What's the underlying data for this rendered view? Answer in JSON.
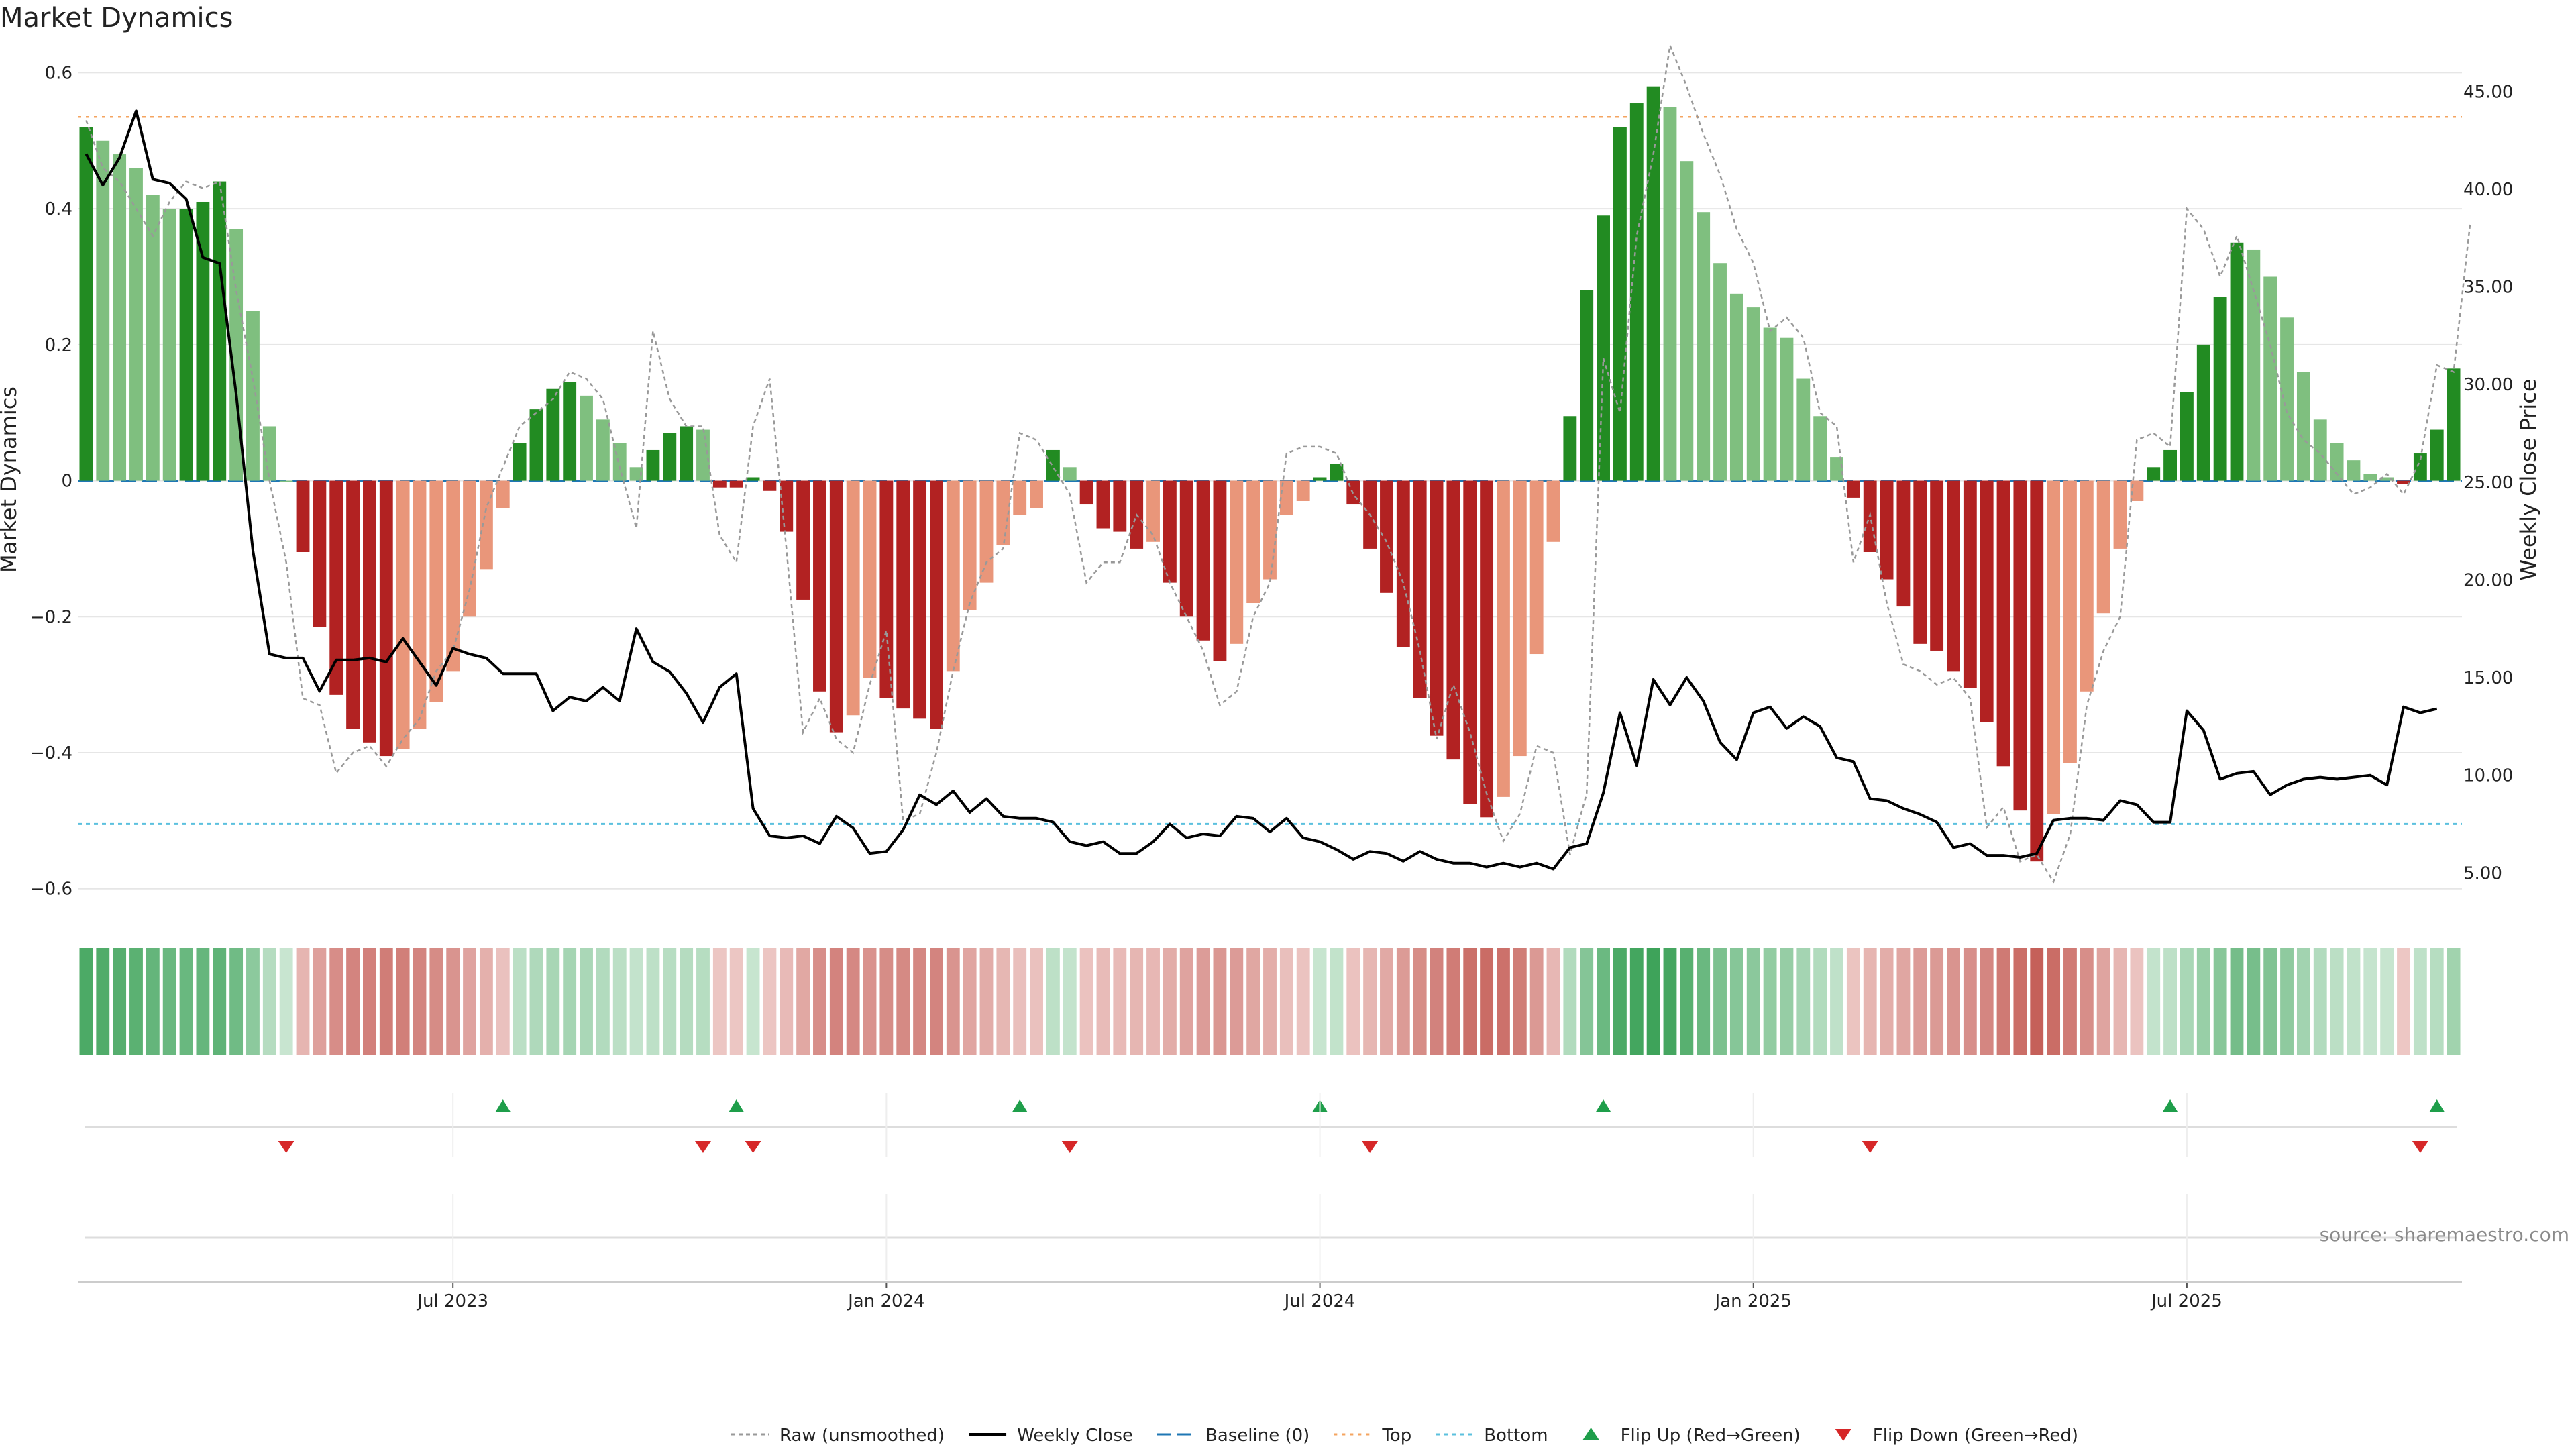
{
  "chart_data": {
    "type": "bar",
    "title": "Market Dynamics",
    "ylabel": "Market Dynamics",
    "y2label": "Weekly Close Price",
    "source": "source: sharemaestro.com",
    "ylim": [
      -0.62,
      0.63
    ],
    "y_ticks": [
      "0.6",
      "0.4",
      "0.2",
      "0",
      "−0.2",
      "−0.4",
      "−0.6"
    ],
    "y_tick_values": [
      0.6,
      0.4,
      0.2,
      0,
      -0.2,
      -0.4,
      -0.6
    ],
    "y2lim": [
      3.5,
      47.0
    ],
    "y2_ticks": [
      "45.00",
      "40.00",
      "35.00",
      "30.00",
      "25.00",
      "20.00",
      "15.00",
      "10.00",
      "5.00"
    ],
    "y2_tick_values": [
      45,
      40,
      35,
      30,
      25,
      20,
      15,
      10,
      5
    ],
    "x_ticks": [
      "Jul 2023",
      "Jan 2024",
      "Jul 2024",
      "Jan 2025",
      "Jul 2025"
    ],
    "x_tick_weeks": [
      22,
      48,
      74,
      100,
      126
    ],
    "top_level": 0.535,
    "bottom_level": -0.505,
    "baseline": 0,
    "colors": {
      "green_strong": "#228B22",
      "green_light": "#7fbf7f",
      "red_strong": "#b22222",
      "red_light": "#e9967a",
      "close": "#000000",
      "raw": "#999999",
      "baseline": "#1f77b4",
      "top": "#f4a460",
      "bottom": "#5bc0de",
      "flip_up": "#1e9e4a",
      "flip_down": "#d62728"
    },
    "series": [
      {
        "name": "Market Dynamics",
        "values": [
          0.52,
          0.5,
          0.48,
          0.46,
          0.42,
          0.4,
          0.4,
          0.41,
          0.44,
          0.37,
          0.25,
          0.08,
          0,
          -0.105,
          -0.215,
          -0.315,
          -0.365,
          -0.385,
          -0.405,
          -0.395,
          -0.365,
          -0.325,
          -0.28,
          -0.2,
          -0.13,
          -0.04,
          0.055,
          0.105,
          0.135,
          0.145,
          0.125,
          0.09,
          0.055,
          0.02,
          0.045,
          0.07,
          0.08,
          0.075,
          -0.01,
          -0.01,
          0.005,
          -0.015,
          -0.075,
          -0.175,
          -0.31,
          -0.37,
          -0.345,
          -0.29,
          -0.32,
          -0.335,
          -0.35,
          -0.365,
          -0.28,
          -0.19,
          -0.15,
          -0.095,
          -0.05,
          -0.04,
          0.045,
          0.02,
          -0.035,
          -0.07,
          -0.075,
          -0.1,
          -0.09,
          -0.15,
          -0.2,
          -0.235,
          -0.265,
          -0.24,
          -0.18,
          -0.145,
          -0.05,
          -0.03,
          0.005,
          0.025,
          -0.035,
          -0.1,
          -0.165,
          -0.245,
          -0.32,
          -0.375,
          -0.41,
          -0.475,
          -0.495,
          -0.465,
          -0.405,
          -0.255,
          -0.09,
          0.095,
          0.28,
          0.39,
          0.52,
          0.555,
          0.58,
          0.55,
          0.47,
          0.395,
          0.32,
          0.275,
          0.255,
          0.225,
          0.21,
          0.15,
          0.095,
          0.035,
          -0.025,
          -0.105,
          -0.145,
          -0.185,
          -0.24,
          -0.25,
          -0.28,
          -0.305,
          -0.355,
          -0.42,
          -0.485,
          -0.56,
          -0.49,
          -0.415,
          -0.31,
          -0.195,
          -0.1,
          -0.03,
          0.02,
          0.045,
          0.13,
          0.2,
          0.27,
          0.35,
          0.34,
          0.3,
          0.24,
          0.16,
          0.09,
          0.055,
          0.03,
          0.01,
          0.005,
          -0.005,
          0.04,
          0.075,
          0.165
        ]
      },
      {
        "name": "Raw (unsmoothed)",
        "values": [
          0.53,
          0.46,
          0.44,
          0.4,
          0.36,
          0.41,
          0.44,
          0.43,
          0.44,
          0.28,
          0.15,
          0,
          -0.12,
          -0.32,
          -0.33,
          -0.43,
          -0.4,
          -0.39,
          -0.42,
          -0.38,
          -0.35,
          -0.28,
          -0.25,
          -0.16,
          -0.04,
          0.02,
          0.08,
          0.1,
          0.12,
          0.16,
          0.15,
          0.12,
          0.02,
          -0.07,
          0.22,
          0.12,
          0.08,
          0.08,
          -0.08,
          -0.12,
          0.08,
          0.15,
          -0.1,
          -0.37,
          -0.32,
          -0.38,
          -0.4,
          -0.3,
          -0.22,
          -0.5,
          -0.49,
          -0.4,
          -0.28,
          -0.18,
          -0.12,
          -0.1,
          0.07,
          0.06,
          0.02,
          -0.02,
          -0.15,
          -0.12,
          -0.12,
          -0.05,
          -0.08,
          -0.15,
          -0.2,
          -0.25,
          -0.33,
          -0.31,
          -0.2,
          -0.15,
          0.04,
          0.05,
          0.05,
          0.04,
          -0.02,
          -0.05,
          -0.09,
          -0.15,
          -0.25,
          -0.38,
          -0.3,
          -0.37,
          -0.46,
          -0.53,
          -0.49,
          -0.39,
          -0.4,
          -0.55,
          -0.46,
          0.18,
          0.1,
          0.36,
          0.48,
          0.64,
          0.58,
          0.51,
          0.45,
          0.37,
          0.32,
          0.22,
          0.24,
          0.21,
          0.1,
          0.08,
          -0.12,
          -0.05,
          -0.18,
          -0.27,
          -0.28,
          -0.3,
          -0.29,
          -0.32,
          -0.51,
          -0.48,
          -0.56,
          -0.55,
          -0.59,
          -0.52,
          -0.33,
          -0.25,
          -0.2,
          0.06,
          0.07,
          0.05,
          0.4,
          0.37,
          0.3,
          0.36,
          0.28,
          0.2,
          0.1,
          0.06,
          0.04,
          0.01,
          -0.02,
          -0.01,
          0.01,
          -0.02,
          0.03,
          0.17,
          0.16,
          0.38
        ]
      },
      {
        "name": "Weekly Close",
        "values": [
          41.8,
          40.2,
          41.6,
          44.0,
          40.5,
          40.3,
          39.5,
          36.5,
          36.2,
          29.5,
          21.5,
          16.2,
          16.0,
          16.0,
          14.3,
          15.9,
          15.9,
          16.0,
          15.8,
          17.0,
          15.8,
          14.6,
          16.5,
          16.2,
          16.0,
          15.2,
          15.2,
          15.2,
          13.3,
          14.0,
          13.8,
          14.5,
          13.8,
          17.5,
          15.8,
          15.3,
          14.2,
          12.7,
          14.5,
          15.2,
          8.3,
          6.9,
          6.8,
          6.9,
          6.5,
          7.9,
          7.3,
          6.0,
          6.1,
          7.2,
          9.0,
          8.5,
          9.2,
          8.1,
          8.8,
          7.9,
          7.8,
          7.8,
          7.6,
          6.6,
          6.4,
          6.6,
          6.0,
          6.0,
          6.6,
          7.5,
          6.8,
          7.0,
          6.9,
          7.9,
          7.8,
          7.1,
          7.8,
          6.8,
          6.6,
          6.2,
          5.7,
          6.1,
          6.0,
          5.6,
          6.1,
          5.7,
          5.5,
          5.5,
          5.3,
          5.5,
          5.3,
          5.5,
          5.2,
          6.3,
          6.5,
          9.1,
          13.2,
          10.5,
          14.9,
          13.6,
          15.0,
          13.8,
          11.7,
          10.8,
          13.2,
          13.5,
          12.4,
          13.0,
          12.5,
          10.9,
          10.7,
          8.8,
          8.7,
          8.3,
          8.0,
          7.6,
          6.3,
          6.5,
          5.9,
          5.9,
          5.8,
          6.0,
          7.7,
          7.8,
          7.8,
          7.7,
          8.7,
          8.5,
          7.6,
          7.6,
          13.3,
          12.3,
          9.8,
          10.1,
          10.2,
          9.0,
          9.5,
          9.8,
          9.9,
          9.8,
          9.9,
          10.0,
          9.5,
          13.5,
          13.2,
          13.4
        ]
      }
    ],
    "flip_up_weeks": [
      25,
      39,
      56,
      74,
      91,
      125,
      141
    ],
    "flip_down_weeks": [
      12,
      37,
      40,
      59,
      77,
      107,
      140
    ],
    "legend": [
      {
        "label": "Raw (unsmoothed)",
        "style": "raw"
      },
      {
        "label": "Weekly Close",
        "style": "close"
      },
      {
        "label": "Baseline (0)",
        "style": "baseline"
      },
      {
        "label": "Top",
        "style": "top"
      },
      {
        "label": "Bottom",
        "style": "bottom"
      },
      {
        "label": "Flip Up (Red→Green)",
        "style": "flip_up"
      },
      {
        "label": "Flip Down (Green→Red)",
        "style": "flip_down"
      }
    ]
  }
}
